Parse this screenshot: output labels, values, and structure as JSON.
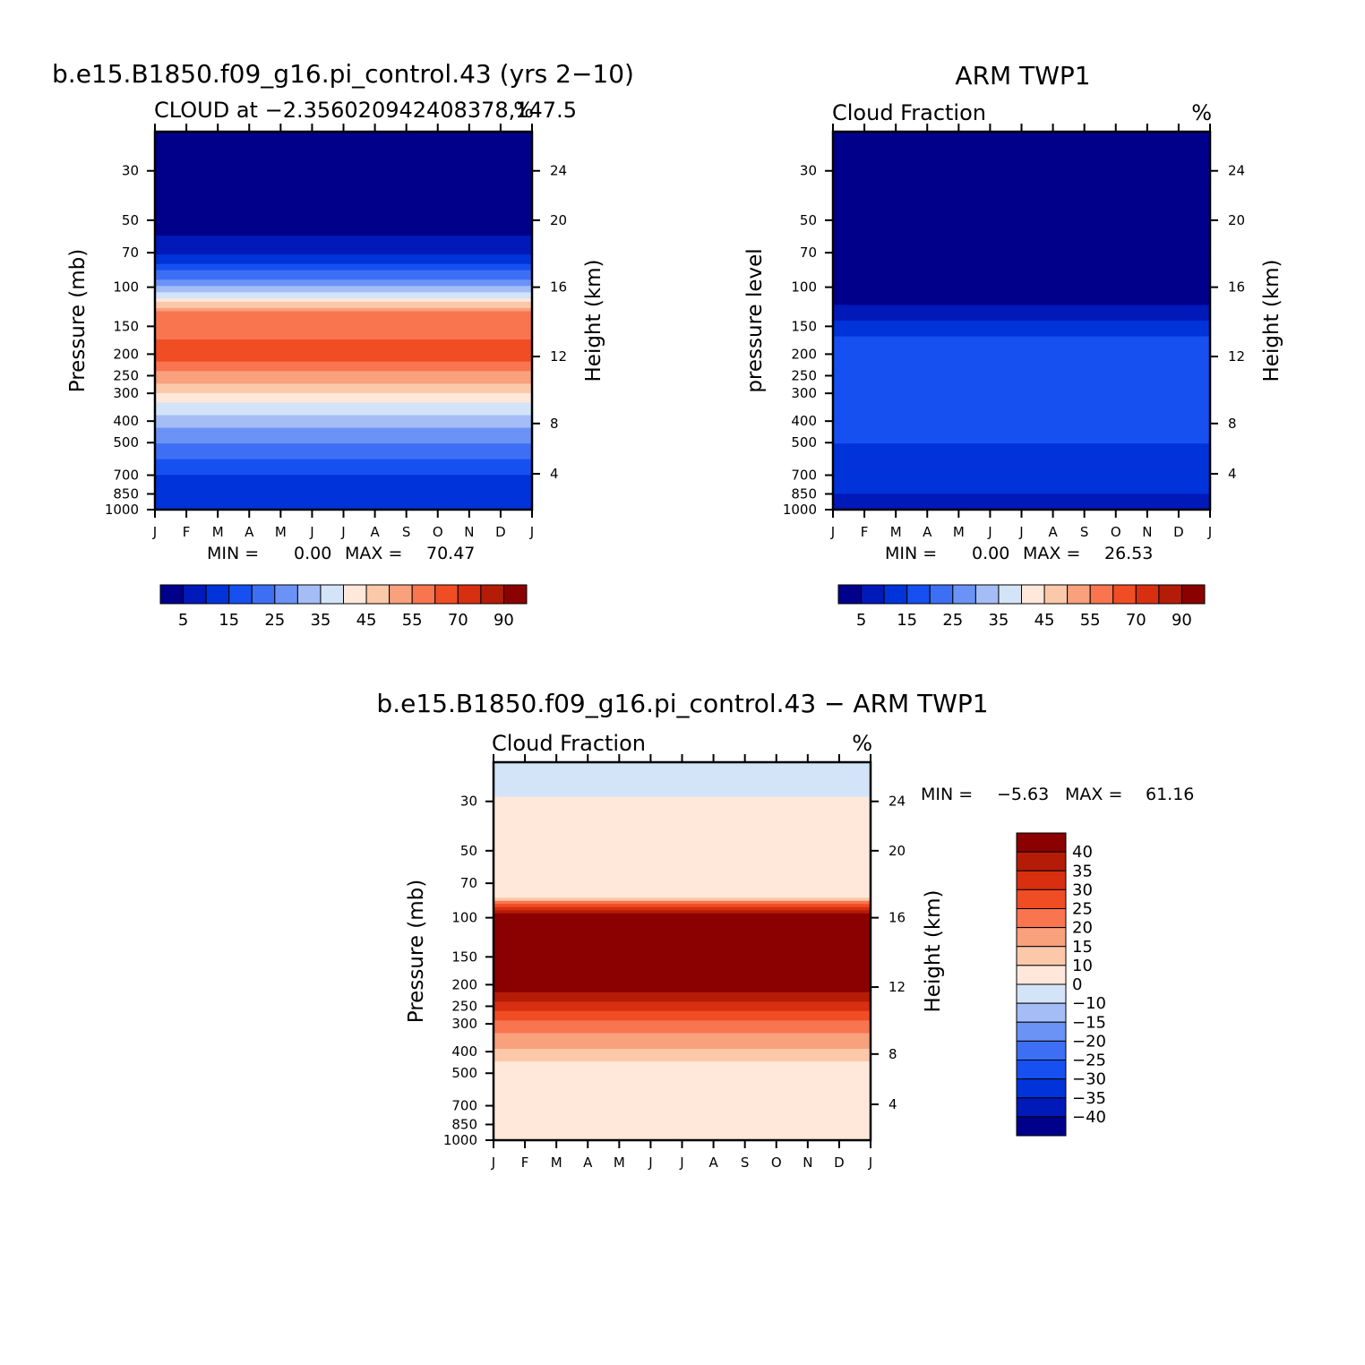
{
  "chart_data": [
    {
      "type": "heatmap",
      "title": "b.e15.B1850.f09_g16.pi_control.43 (yrs 2-10)",
      "subtitle_left": "CLOUD at -2.356020942408378,147.5",
      "subtitle_right": "%",
      "ylabel": "Pressure (mb)",
      "ylabel_right": "Height (km)",
      "x_ticks": [
        "J",
        "F",
        "M",
        "A",
        "M",
        "J",
        "J",
        "A",
        "S",
        "O",
        "N",
        "D",
        "J"
      ],
      "y_ticks": [
        30,
        50,
        70,
        100,
        150,
        200,
        250,
        300,
        400,
        500,
        700,
        850,
        1000
      ],
      "y_ticks_right": [
        24,
        20,
        16,
        12,
        8,
        4
      ],
      "ylim": [
        1000,
        20
      ],
      "y_scale": "log",
      "stats": {
        "min_label": "MIN =",
        "min": "0.00",
        "max_label": "MAX =",
        "max": "70.47"
      },
      "colorbar": {
        "orientation": "horizontal",
        "levels": [
          5,
          10,
          15,
          20,
          25,
          30,
          35,
          40,
          45,
          50,
          55,
          60,
          70,
          80,
          90
        ],
        "tick_labels": [
          "5",
          "15",
          "25",
          "35",
          "45",
          "55",
          "70",
          "90"
        ]
      },
      "profile": [
        {
          "p": 20,
          "value": 2
        },
        {
          "p": 50,
          "value": 2
        },
        {
          "p": 70,
          "value": 8
        },
        {
          "p": 100,
          "value": 30
        },
        {
          "p": 130,
          "value": 55
        },
        {
          "p": 200,
          "value": 63
        },
        {
          "p": 300,
          "value": 45
        },
        {
          "p": 400,
          "value": 32
        },
        {
          "p": 500,
          "value": 25
        },
        {
          "p": 700,
          "value": 15
        },
        {
          "p": 850,
          "value": 12
        },
        {
          "p": 1000,
          "value": 10
        }
      ]
    },
    {
      "type": "heatmap",
      "title": "ARM TWP1",
      "subtitle_left": "Cloud Fraction",
      "subtitle_right": "%",
      "ylabel": "pressure level",
      "ylabel_right": "Height (km)",
      "x_ticks": [
        "J",
        "F",
        "M",
        "A",
        "M",
        "J",
        "J",
        "A",
        "S",
        "O",
        "N",
        "D",
        "J"
      ],
      "y_ticks": [
        30,
        50,
        70,
        100,
        150,
        200,
        250,
        300,
        400,
        500,
        700,
        850,
        1000
      ],
      "y_ticks_right": [
        24,
        20,
        16,
        12,
        8,
        4
      ],
      "ylim": [
        1000,
        20
      ],
      "y_scale": "log",
      "stats": {
        "min_label": "MIN =",
        "min": "0.00",
        "max_label": "MAX =",
        "max": "26.53"
      },
      "colorbar": {
        "orientation": "horizontal",
        "levels": [
          5,
          10,
          15,
          20,
          25,
          30,
          35,
          40,
          45,
          50,
          55,
          60,
          70,
          80,
          90
        ],
        "tick_labels": [
          "5",
          "15",
          "25",
          "35",
          "45",
          "55",
          "70",
          "90"
        ]
      },
      "profile": [
        {
          "p": 20,
          "value": 2
        },
        {
          "p": 100,
          "value": 2
        },
        {
          "p": 130,
          "value": 6
        },
        {
          "p": 150,
          "value": 12
        },
        {
          "p": 200,
          "value": 20
        },
        {
          "p": 300,
          "value": 19
        },
        {
          "p": 400,
          "value": 16
        },
        {
          "p": 500,
          "value": 15
        },
        {
          "p": 700,
          "value": 12
        },
        {
          "p": 850,
          "value": 10
        },
        {
          "p": 1000,
          "value": 8
        }
      ]
    },
    {
      "type": "heatmap",
      "title": "b.e15.B1850.f09_g16.pi_control.43 - ARM TWP1",
      "subtitle_left": "Cloud Fraction",
      "subtitle_right": "%",
      "ylabel": "Pressure (mb)",
      "ylabel_right": "Height (km)",
      "x_ticks": [
        "J",
        "F",
        "M",
        "A",
        "M",
        "J",
        "J",
        "A",
        "S",
        "O",
        "N",
        "D",
        "J"
      ],
      "y_ticks": [
        30,
        50,
        70,
        100,
        150,
        200,
        250,
        300,
        400,
        500,
        700,
        850,
        1000
      ],
      "y_ticks_right": [
        24,
        20,
        16,
        12,
        8,
        4
      ],
      "ylim": [
        1000,
        20
      ],
      "y_scale": "log",
      "stats": {
        "min_label": "MIN =",
        "min": "-5.63",
        "max_label": "MAX =",
        "max": "61.16"
      },
      "colorbar": {
        "orientation": "vertical",
        "levels": [
          -40,
          -35,
          -30,
          -25,
          -20,
          -15,
          -10,
          0,
          10,
          15,
          20,
          25,
          30,
          35,
          40
        ],
        "tick_labels": [
          "40",
          "35",
          "30",
          "25",
          "20",
          "15",
          "10",
          "0",
          "-10",
          "-15",
          "-20",
          "-25",
          "-30",
          "-35",
          "-40"
        ]
      },
      "profile": [
        {
          "p": 20,
          "value": -2
        },
        {
          "p": 50,
          "value": 3
        },
        {
          "p": 80,
          "value": 10
        },
        {
          "p": 100,
          "value": 45
        },
        {
          "p": 200,
          "value": 45
        },
        {
          "p": 260,
          "value": 30
        },
        {
          "p": 330,
          "value": 20
        },
        {
          "p": 400,
          "value": 14
        },
        {
          "p": 500,
          "value": 5
        },
        {
          "p": 700,
          "value": 3
        },
        {
          "p": 850,
          "value": 2
        },
        {
          "p": 1000,
          "value": 1
        }
      ]
    }
  ],
  "colors": {
    "seq_palette": [
      "#00008b",
      "#0019b9",
      "#0033d9",
      "#1750f0",
      "#3d6ff5",
      "#6b93f6",
      "#a4bdf7",
      "#d3e4f8",
      "#ffe8d9",
      "#fcc8aa",
      "#f9a07d",
      "#f87550",
      "#f04d24",
      "#d72f10",
      "#b41c07",
      "#8b0000"
    ],
    "diff_palette": [
      "#00008b",
      "#0019b9",
      "#0033d9",
      "#1750f0",
      "#3d6ff5",
      "#6b93f6",
      "#a4bdf7",
      "#d3e4f8",
      "#ffe8d9",
      "#fcc8aa",
      "#f9a07d",
      "#f87550",
      "#f04d24",
      "#d72f10",
      "#b41c07",
      "#8b0000"
    ]
  }
}
